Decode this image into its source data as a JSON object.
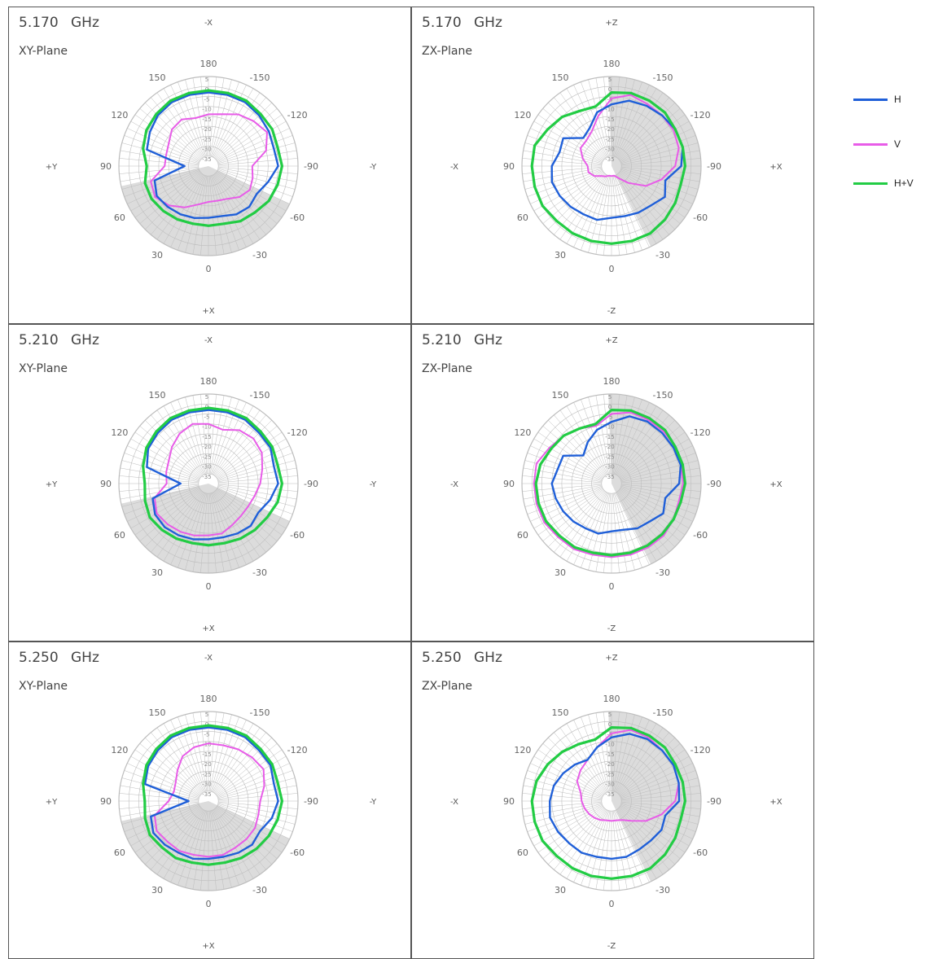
{
  "colors": {
    "H": "#1f5fd8",
    "V": "#e85ce8",
    "HV": "#22cc44",
    "grid": "#bdbdbd",
    "shade": "#d6d6d6"
  },
  "legend": [
    {
      "key": "H",
      "label": "H"
    },
    {
      "key": "V",
      "label": "V"
    },
    {
      "key": "HV",
      "label": "H+V"
    }
  ],
  "chart_data": [
    {
      "type": "polar-line",
      "freq": "5.170",
      "unit": "GHz",
      "plane": "XY-Plane",
      "dirs": {
        "top": "-X",
        "bottom": "+X",
        "left": "+Y",
        "right": "-Y"
      },
      "angle_labels": [
        "180",
        "150",
        "120",
        "90",
        "60",
        "30",
        "0",
        "-30",
        "-60",
        "-90",
        "-120",
        "-150"
      ],
      "ring_labels": [
        "5",
        "0",
        "-5",
        "-10",
        "-15",
        "-20",
        "-25",
        "-30",
        "-35"
      ],
      "rlim": [
        -40,
        5
      ],
      "angles_deg": [
        0,
        15,
        30,
        45,
        60,
        75,
        90,
        105,
        120,
        135,
        150,
        165,
        180,
        195,
        210,
        225,
        240,
        255,
        270,
        285,
        300,
        315,
        330,
        345
      ],
      "series": [
        {
          "name": "H",
          "key": "H",
          "values": [
            -14,
            -13,
            -12,
            -11,
            -10,
            -12,
            -28,
            -8,
            -6,
            -4,
            -3,
            -3,
            -3,
            -3,
            -3,
            -4,
            -5,
            -6,
            -5,
            -9,
            -12,
            -11,
            -12,
            -14
          ]
        },
        {
          "name": "V",
          "key": "V",
          "values": [
            -22,
            -20,
            -16,
            -12,
            -9,
            -10,
            -18,
            -18,
            -17,
            -14,
            -13,
            -15,
            -14,
            -13,
            -10,
            -8,
            -6,
            -10,
            -18,
            -17,
            -16,
            -18,
            -21,
            -22
          ]
        },
        {
          "name": "H+V",
          "key": "HV",
          "values": [
            -10,
            -10,
            -9,
            -8,
            -7,
            -7,
            -9,
            -6,
            -4,
            -3,
            -2,
            -2,
            -2,
            -2,
            -2,
            -3,
            -3,
            -4,
            -3,
            -4,
            -5,
            -7,
            -8,
            -10
          ]
        }
      ]
    },
    {
      "type": "polar-line",
      "freq": "5.170",
      "unit": "GHz",
      "plane": "ZX-Plane",
      "dirs": {
        "top": "+Z",
        "bottom": "-Z",
        "left": "-X",
        "right": "+X"
      },
      "angle_labels": [
        "180",
        "150",
        "120",
        "90",
        "60",
        "30",
        "0",
        "-30",
        "-60",
        "-90",
        "-120",
        "-150"
      ],
      "ring_labels": [
        "5",
        "0",
        "-5",
        "-10",
        "-15",
        "-20",
        "-25",
        "-30",
        "-35"
      ],
      "rlim": [
        -40,
        5
      ],
      "angles_deg": [
        0,
        15,
        30,
        45,
        60,
        75,
        90,
        105,
        120,
        135,
        150,
        165,
        180,
        195,
        210,
        225,
        240,
        255,
        270,
        285,
        300,
        315,
        330,
        345
      ],
      "series": [
        {
          "name": "H",
          "key": "H",
          "values": [
            -14,
            -12,
            -12,
            -11,
            -10,
            -9,
            -10,
            -13,
            -12,
            -20,
            -18,
            -12,
            -9,
            -6,
            -5,
            -4,
            -3,
            -3,
            -5,
            -12,
            -9,
            -12,
            -13,
            -14
          ]
        },
        {
          "name": "V",
          "key": "V",
          "values": [
            -35,
            -35,
            -34,
            -33,
            -30,
            -28,
            -28,
            -25,
            -22,
            -22,
            -20,
            -14,
            -6,
            -3,
            -4,
            -4,
            -4,
            -5,
            -8,
            -14,
            -20,
            -28,
            -33,
            -35
          ]
        },
        {
          "name": "H+V",
          "key": "HV",
          "values": [
            -1,
            -1,
            -1,
            -1,
            0,
            0,
            0,
            0,
            -3,
            -5,
            -8,
            -9,
            -3,
            -2,
            -2,
            -2,
            -3,
            -3,
            -3,
            -4,
            -3,
            -2,
            -1,
            -1
          ]
        }
      ]
    },
    {
      "type": "polar-line",
      "freq": "5.210",
      "unit": "GHz",
      "plane": "XY-Plane",
      "dirs": {
        "top": "-X",
        "bottom": "+X",
        "left": "+Y",
        "right": "-Y"
      },
      "angle_labels": [
        "180",
        "150",
        "120",
        "90",
        "60",
        "30",
        "0",
        "-30",
        "-60",
        "-90",
        "-120",
        "-150"
      ],
      "ring_labels": [
        "5",
        "0",
        "-5",
        "-10",
        "-15",
        "-20",
        "-25",
        "-30",
        "-35"
      ],
      "rlim": [
        -40,
        5
      ],
      "angles_deg": [
        0,
        15,
        30,
        45,
        60,
        75,
        90,
        105,
        120,
        135,
        150,
        165,
        180,
        195,
        210,
        225,
        240,
        255,
        270,
        285,
        300,
        315,
        330,
        345
      ],
      "series": [
        {
          "name": "H",
          "key": "H",
          "values": [
            -12,
            -11,
            -10,
            -9,
            -9,
            -11,
            -26,
            -8,
            -5,
            -4,
            -3,
            -3,
            -3,
            -3,
            -3,
            -4,
            -4,
            -6,
            -5,
            -8,
            -11,
            -10,
            -11,
            -12
          ]
        },
        {
          "name": "V",
          "key": "V",
          "values": [
            -14,
            -13,
            -12,
            -11,
            -10,
            -12,
            -19,
            -18,
            -17,
            -14,
            -11,
            -9,
            -10,
            -12,
            -9,
            -8,
            -9,
            -12,
            -14,
            -16,
            -17,
            -17,
            -16,
            -14
          ]
        },
        {
          "name": "H+V",
          "key": "HV",
          "values": [
            -9,
            -9,
            -8,
            -7,
            -6,
            -7,
            -8,
            -6,
            -4,
            -3,
            -2,
            -2,
            -2,
            -2,
            -2,
            -3,
            -3,
            -4,
            -3,
            -4,
            -6,
            -7,
            -8,
            -9
          ]
        }
      ]
    },
    {
      "type": "polar-line",
      "freq": "5.210",
      "unit": "GHz",
      "plane": "ZX-Plane",
      "dirs": {
        "top": "+Z",
        "bottom": "-Z",
        "left": "-X",
        "right": "+X"
      },
      "angle_labels": [
        "180",
        "150",
        "120",
        "90",
        "60",
        "30",
        "0",
        "-30",
        "-60",
        "-90",
        "-120",
        "-150"
      ],
      "ring_labels": [
        "5",
        "0",
        "-5",
        "-10",
        "-15",
        "-20",
        "-25",
        "-30",
        "-35"
      ],
      "rlim": [
        -40,
        5
      ],
      "angles_deg": [
        0,
        15,
        30,
        45,
        60,
        75,
        90,
        105,
        120,
        135,
        150,
        165,
        180,
        195,
        210,
        225,
        240,
        255,
        270,
        285,
        300,
        315,
        330,
        345
      ],
      "series": [
        {
          "name": "H",
          "key": "H",
          "values": [
            -16,
            -14,
            -14,
            -13,
            -12,
            -11,
            -10,
            -12,
            -12,
            -20,
            -16,
            -12,
            -9,
            -5,
            -4,
            -4,
            -4,
            -4,
            -6,
            -12,
            -10,
            -13,
            -14,
            -16
          ]
        },
        {
          "name": "V",
          "key": "V",
          "values": [
            -3,
            -3,
            -2,
            -2,
            -1,
            -1,
            -1,
            -1,
            -4,
            -6,
            -8,
            -10,
            -5,
            -3,
            -3,
            -3,
            -3,
            -4,
            -4,
            -5,
            -4,
            -3,
            -3,
            -3
          ]
        },
        {
          "name": "H+V",
          "key": "HV",
          "values": [
            -4,
            -4,
            -3,
            -3,
            -2,
            -2,
            -2,
            -3,
            -5,
            -6,
            -8,
            -9,
            -3,
            -2,
            -2,
            -2,
            -3,
            -3,
            -3,
            -4,
            -4,
            -4,
            -4,
            -4
          ]
        }
      ]
    },
    {
      "type": "polar-line",
      "freq": "5.250",
      "unit": "GHz",
      "plane": "XY-Plane",
      "dirs": {
        "top": "-X",
        "bottom": "+X",
        "left": "+Y",
        "right": "-Y"
      },
      "angle_labels": [
        "180",
        "150",
        "120",
        "90",
        "60",
        "30",
        "0",
        "-30",
        "-60",
        "-90",
        "-120",
        "-150"
      ],
      "ring_labels": [
        "5",
        "0",
        "-5",
        "-10",
        "-15",
        "-20",
        "-25",
        "-30",
        "-35"
      ],
      "rlim": [
        -40,
        5
      ],
      "angles_deg": [
        0,
        15,
        30,
        45,
        60,
        75,
        90,
        105,
        120,
        135,
        150,
        165,
        180,
        195,
        210,
        225,
        240,
        255,
        270,
        285,
        300,
        315,
        330,
        345
      ],
      "series": [
        {
          "name": "H",
          "key": "H",
          "values": [
            -11,
            -10,
            -10,
            -9,
            -8,
            -10,
            -30,
            -7,
            -5,
            -4,
            -3,
            -3,
            -3,
            -3,
            -3,
            -4,
            -4,
            -6,
            -5,
            -7,
            -10,
            -9,
            -10,
            -11
          ]
        },
        {
          "name": "V",
          "key": "V",
          "values": [
            -12,
            -12,
            -11,
            -11,
            -10,
            -12,
            -20,
            -22,
            -21,
            -18,
            -14,
            -12,
            -11,
            -11,
            -10,
            -9,
            -8,
            -11,
            -14,
            -14,
            -13,
            -13,
            -13,
            -12
          ]
        },
        {
          "name": "H+V",
          "key": "HV",
          "values": [
            -8,
            -8,
            -7,
            -7,
            -6,
            -7,
            -8,
            -6,
            -4,
            -3,
            -2,
            -2,
            -2,
            -2,
            -2,
            -3,
            -3,
            -4,
            -3,
            -4,
            -5,
            -6,
            -7,
            -8
          ]
        }
      ]
    },
    {
      "type": "polar-line",
      "freq": "5.250",
      "unit": "GHz",
      "plane": "ZX-Plane",
      "dirs": {
        "top": "+Z",
        "bottom": "-Z",
        "left": "-X",
        "right": "+X"
      },
      "angle_labels": [
        "180",
        "150",
        "120",
        "90",
        "60",
        "30",
        "0",
        "-30",
        "-60",
        "-90",
        "-120",
        "-150"
      ],
      "ring_labels": [
        "5",
        "0",
        "-5",
        "-10",
        "-15",
        "-20",
        "-25",
        "-30",
        "-35"
      ],
      "rlim": [
        -40,
        5
      ],
      "angles_deg": [
        0,
        15,
        30,
        45,
        60,
        75,
        90,
        105,
        120,
        135,
        150,
        165,
        180,
        195,
        210,
        225,
        240,
        255,
        270,
        285,
        300,
        315,
        330,
        345
      ],
      "series": [
        {
          "name": "H",
          "key": "H",
          "values": [
            -11,
            -11,
            -10,
            -10,
            -9,
            -8,
            -9,
            -10,
            -12,
            -14,
            -16,
            -12,
            -8,
            -5,
            -4,
            -4,
            -4,
            -5,
            -6,
            -12,
            -11,
            -12,
            -12,
            -11
          ]
        },
        {
          "name": "V",
          "key": "V",
          "values": [
            -30,
            -30,
            -29,
            -28,
            -27,
            -26,
            -25,
            -24,
            -20,
            -18,
            -16,
            -12,
            -6,
            -3,
            -3,
            -4,
            -4,
            -5,
            -8,
            -14,
            -20,
            -26,
            -29,
            -30
          ]
        },
        {
          "name": "H+V",
          "key": "HV",
          "values": [
            -1,
            -1,
            -1,
            -1,
            0,
            0,
            0,
            -1,
            -3,
            -5,
            -7,
            -8,
            -3,
            -2,
            -2,
            -2,
            -3,
            -3,
            -3,
            -4,
            -3,
            -2,
            -1,
            -1
          ]
        }
      ]
    }
  ]
}
